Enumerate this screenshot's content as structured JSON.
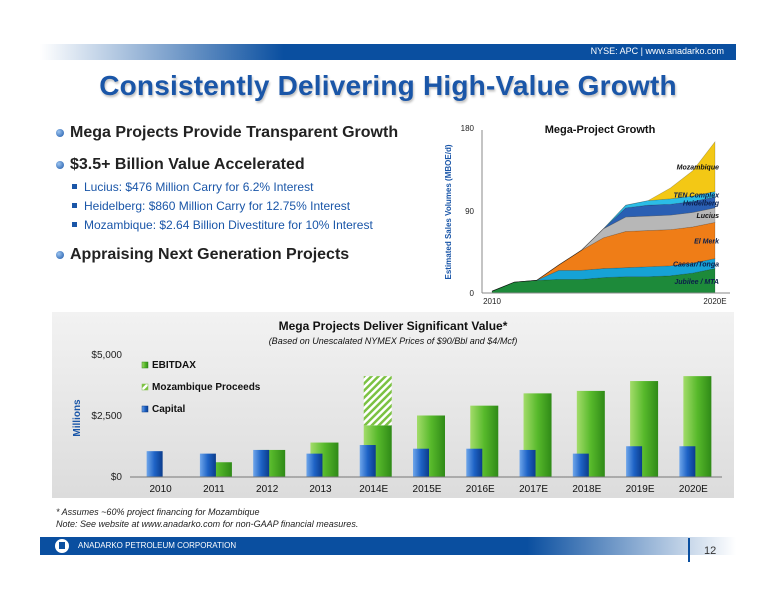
{
  "header": {
    "ticker": "NYSE: APC | www.anadarko.com"
  },
  "title": "Consistently Delivering High-Value Growth",
  "bullets": {
    "b1": "Mega Projects Provide Transparent Growth",
    "b2": "$3.5+ Billion Value Accelerated",
    "sub": [
      "Lucius: $476 Million Carry for 6.2% Interest",
      "Heidelberg: $860 Million Carry for 12.75% Interest",
      "Mozambique: $2.64 Billion Divestiture for 10% Interest"
    ],
    "b3": "Appraising Next Generation Projects"
  },
  "chart_data": [
    {
      "type": "area",
      "title": "Mega-Project Growth",
      "ylabel": "Estimated Sales Volumes (MBOE/d)",
      "xlabel": "",
      "x_tick_labels": [
        "2010",
        "2020E"
      ],
      "y_tick_labels": [
        "0",
        "90",
        "180"
      ],
      "ylim": [
        0,
        180
      ],
      "x": [
        "2010",
        "2011",
        "2012",
        "2013",
        "2014E",
        "2015E",
        "2016E",
        "2017E",
        "2018E",
        "2019E",
        "2020E"
      ],
      "stacked": true,
      "series": [
        {
          "name": "Jubilee / MTA",
          "color": "#1d8a3a",
          "values": [
            2,
            12,
            14,
            15,
            15,
            17,
            18,
            18,
            19,
            22,
            27
          ]
        },
        {
          "name": "Caesar/Tonga",
          "color": "#16a2d6",
          "values": [
            0,
            0,
            0,
            10,
            10,
            10,
            10,
            11,
            11,
            11,
            11
          ]
        },
        {
          "name": "El Merk",
          "color": "#ef7d17",
          "values": [
            0,
            0,
            0,
            6,
            22,
            34,
            40,
            40,
            40,
            40,
            40
          ]
        },
        {
          "name": "Lucius",
          "color": "#b7b7b7",
          "values": [
            0,
            0,
            0,
            0,
            0,
            10,
            16,
            16,
            16,
            16,
            16
          ]
        },
        {
          "name": "Heidelberg",
          "color": "#2a5fb3",
          "values": [
            0,
            0,
            0,
            0,
            0,
            0,
            10,
            12,
            12,
            12,
            12
          ]
        },
        {
          "name": "TEN Complex",
          "color": "#2bbde6",
          "values": [
            0,
            0,
            0,
            0,
            0,
            0,
            3,
            5,
            6,
            6,
            6
          ]
        },
        {
          "name": "Mozambique",
          "color": "#f3c815",
          "values": [
            0,
            0,
            0,
            0,
            0,
            0,
            0,
            0,
            12,
            28,
            55
          ]
        }
      ]
    },
    {
      "type": "bar",
      "title": "Mega Projects Deliver Significant Value*",
      "subtitle": "(Based on Unescalated NYMEX Prices of $90/Bbl and $4/Mcf)",
      "ylabel": "Millions",
      "xlabel": "",
      "y_tick_labels": [
        "$5,000",
        "$2,500",
        "$0"
      ],
      "ylim": [
        0,
        5000
      ],
      "categories": [
        "2010",
        "2011",
        "2012",
        "2013",
        "2014E",
        "2015E",
        "2016E",
        "2017E",
        "2018E",
        "2019E",
        "2020E"
      ],
      "series": [
        {
          "name": "EBITDAX",
          "color": "#57b92b",
          "values": [
            0,
            600,
            1100,
            1400,
            2100,
            2500,
            2900,
            3400,
            3500,
            3900,
            4100
          ]
        },
        {
          "name": "Mozambique Proceeds",
          "color": "#7cc243",
          "values": [
            0,
            0,
            0,
            0,
            2000,
            0,
            0,
            0,
            0,
            0,
            0
          ]
        },
        {
          "name": "Capital",
          "color": "#1e63c6",
          "values": [
            1050,
            950,
            1100,
            950,
            1300,
            1150,
            1150,
            1100,
            950,
            1250,
            1250
          ]
        }
      ],
      "legend_position": "top-left"
    }
  ],
  "footnote": {
    "line1": "* Assumes ~60% project financing for Mozambique",
    "line2": "Note: See website at www.anadarko.com for non-GAAP financial measures."
  },
  "footer": {
    "company": "ANADARKO PETROLEUM CORPORATION",
    "page": "12"
  }
}
